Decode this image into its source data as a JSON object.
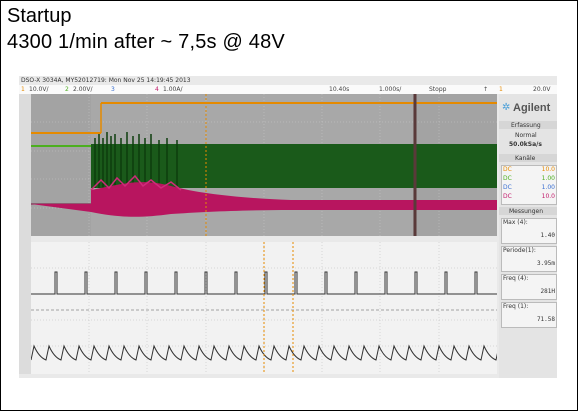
{
  "caption": {
    "title": "Startup",
    "subtitle": "4300 1/min after ~ 7,5s @ 48V"
  },
  "scope": {
    "header_text": "DSO-X 3034A, MY52012719: Mon Nov 25 14:19:45 2013",
    "channels": [
      {
        "label": "1",
        "scale": "10.0V/",
        "color": "#e58a00"
      },
      {
        "label": "2",
        "scale": "2.00V/",
        "color": "#4caf1f"
      },
      {
        "label": "3",
        "scale": "",
        "color": "#3a6fd1"
      },
      {
        "label": "4",
        "scale": "1.00A/",
        "color": "#c21a6b"
      }
    ],
    "timebase": {
      "offset": "10.40s",
      "scale": "1.000s/",
      "run_state": "Stopp"
    },
    "trigger": {
      "symbol": "↑",
      "channel": "1",
      "level": "20.0V"
    },
    "side_panel": {
      "brand": "Agilent",
      "acquisition_header": "Erfassung",
      "acq_mode": "Normal",
      "sample_rate": "50.0kSa/s",
      "channels_header": "Kanäle",
      "channel_values": [
        {
          "coupling": "DC",
          "value": "10.0",
          "color": "#e58a00"
        },
        {
          "coupling": "DC",
          "value": "1.00",
          "color": "#4caf1f"
        },
        {
          "coupling": "DC",
          "value": "1.00",
          "color": "#3a6fd1"
        },
        {
          "coupling": "DC",
          "value": "10.0",
          "color": "#c21a6b"
        }
      ],
      "measurements_header": "Messungen",
      "measurements": [
        {
          "label": "Max (4):",
          "value": "1.40"
        },
        {
          "label": "Periode(1):",
          "value": "3.95m"
        },
        {
          "label": "Freq (4):",
          "value": "281H"
        },
        {
          "label": "Freq (1):",
          "value": "71.58"
        }
      ]
    }
  }
}
